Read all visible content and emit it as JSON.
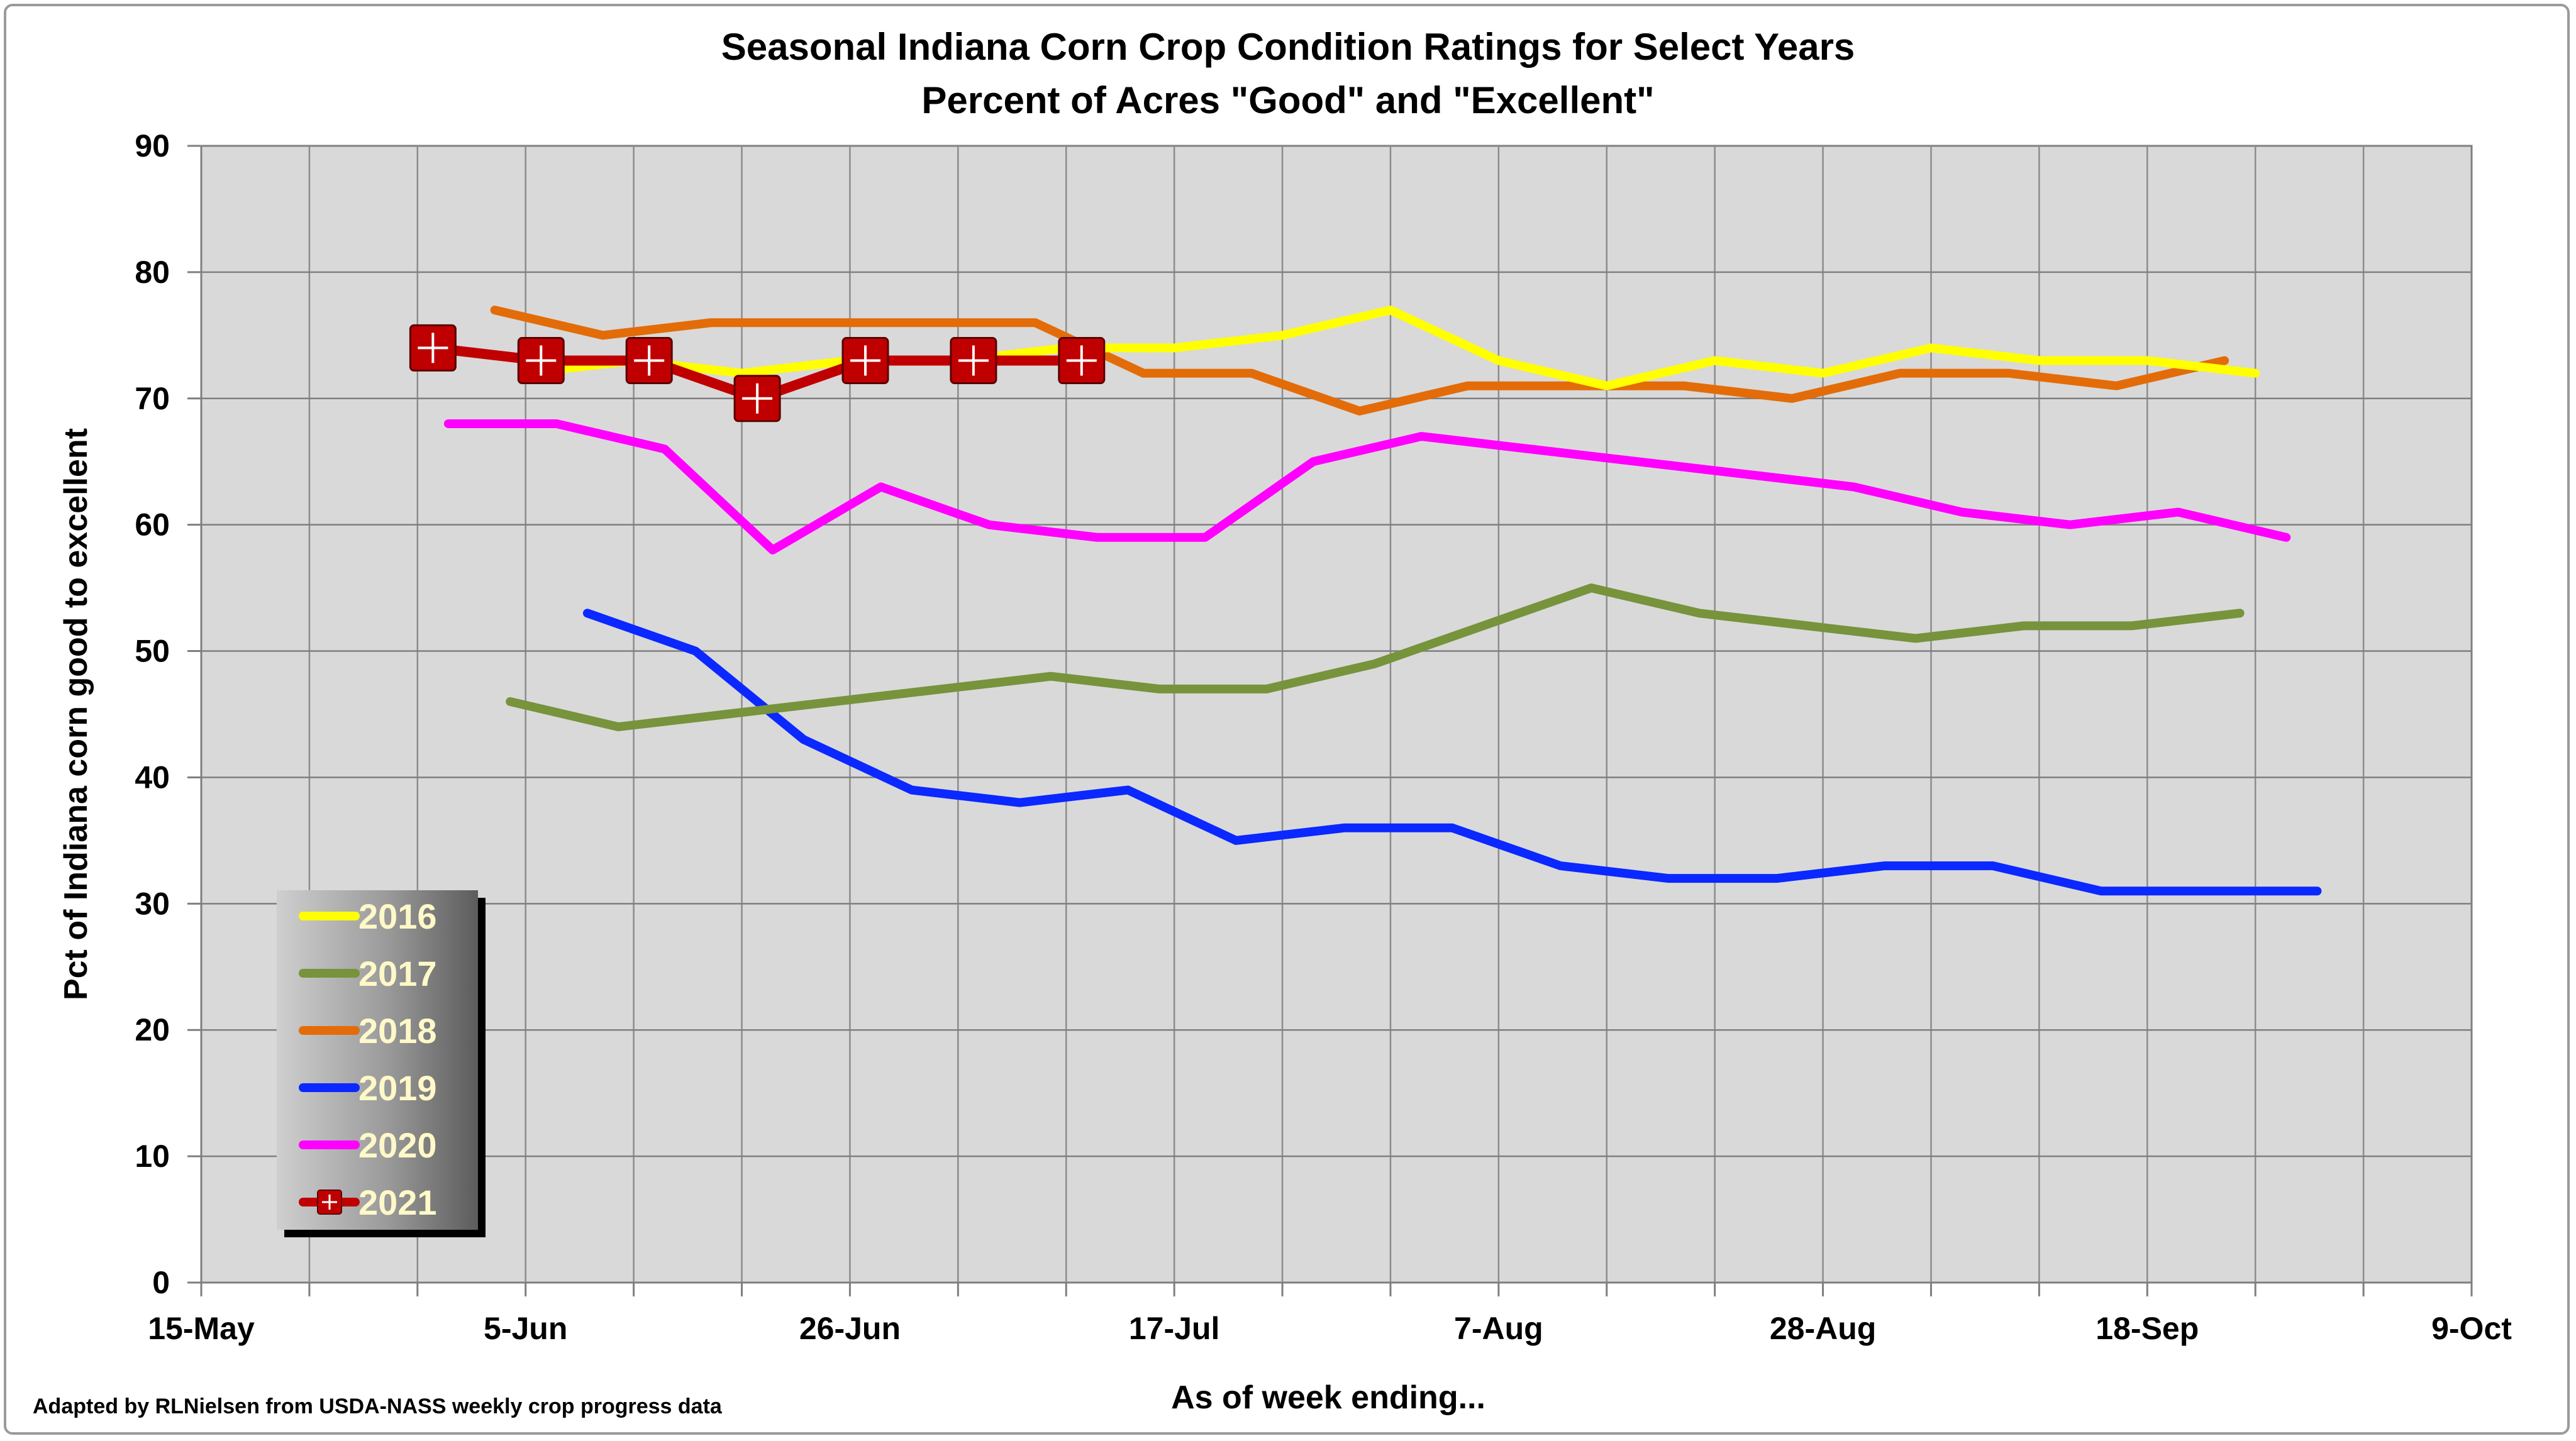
{
  "chart_data": {
    "type": "line",
    "title": "Seasonal Indiana Corn Crop Condition Ratings for Select Years",
    "subtitle": "Percent of Acres \"Good\" and \"Excellent\"",
    "xlabel": "As of week ending...",
    "ylabel": "Pct of Indiana corn good to excellent",
    "credit": "Adapted by RLNielsen from USDA-NASS weekly crop progress data",
    "x_ticks": [
      "15-May",
      "5-Jun",
      "26-Jun",
      "17-Jul",
      "7-Aug",
      "28-Aug",
      "18-Sep",
      "9-Oct"
    ],
    "x_range_days": [
      0,
      147
    ],
    "y_ticks": [
      "0",
      "10",
      "20",
      "30",
      "40",
      "50",
      "60",
      "70",
      "80",
      "90"
    ],
    "ylim": [
      0,
      90
    ],
    "grid": true,
    "legend_position": "bottom-left",
    "series": [
      {
        "name": "2016",
        "color": "#ffff00",
        "x": [
          "5-Jun",
          "12-Jun",
          "19-Jun",
          "26-Jun",
          "3-Jul",
          "10-Jul",
          "17-Jul",
          "24-Jul",
          "31-Jul",
          "7-Aug",
          "14-Aug",
          "21-Aug",
          "28-Aug",
          "4-Sep",
          "11-Sep",
          "18-Sep",
          "25-Sep"
        ],
        "y": [
          72,
          73,
          72,
          73,
          73,
          74,
          74,
          75,
          77,
          73,
          71,
          73,
          72,
          74,
          73,
          73,
          72
        ]
      },
      {
        "name": "2017",
        "color": "#77933c",
        "x": [
          "4-Jun",
          "11-Jun",
          "18-Jun",
          "25-Jun",
          "2-Jul",
          "9-Jul",
          "16-Jul",
          "23-Jul",
          "30-Jul",
          "6-Aug",
          "13-Aug",
          "20-Aug",
          "27-Aug",
          "3-Sep",
          "10-Sep",
          "17-Sep",
          "24-Sep"
        ],
        "y": [
          46,
          44,
          45,
          46,
          47,
          48,
          47,
          47,
          49,
          52,
          55,
          53,
          52,
          51,
          52,
          52,
          53
        ]
      },
      {
        "name": "2018",
        "color": "#e36c09",
        "x": [
          "3-Jun",
          "10-Jun",
          "17-Jun",
          "24-Jun",
          "1-Jul",
          "8-Jul",
          "15-Jul",
          "22-Jul",
          "29-Jul",
          "5-Aug",
          "12-Aug",
          "19-Aug",
          "26-Aug",
          "2-Sep",
          "9-Sep",
          "16-Sep",
          "23-Sep"
        ],
        "y": [
          77,
          75,
          76,
          76,
          76,
          76,
          72,
          72,
          69,
          71,
          71,
          71,
          70,
          72,
          72,
          71,
          73
        ]
      },
      {
        "name": "2019",
        "color": "#0a28ff",
        "x": [
          "9-Jun",
          "16-Jun",
          "23-Jun",
          "30-Jun",
          "7-Jul",
          "14-Jul",
          "21-Jul",
          "28-Jul",
          "4-Aug",
          "11-Aug",
          "18-Aug",
          "25-Aug",
          "1-Sep",
          "8-Sep",
          "15-Sep",
          "22-Sep",
          "29-Sep"
        ],
        "y": [
          53,
          50,
          43,
          39,
          38,
          39,
          35,
          36,
          36,
          33,
          32,
          32,
          33,
          33,
          31,
          31,
          31
        ]
      },
      {
        "name": "2020",
        "color": "#ff00ff",
        "x": [
          "31-May",
          "7-Jun",
          "14-Jun",
          "21-Jun",
          "28-Jun",
          "5-Jul",
          "12-Jul",
          "19-Jul",
          "26-Jul",
          "2-Aug",
          "9-Aug",
          "16-Aug",
          "23-Aug",
          "30-Aug",
          "6-Sep",
          "13-Sep",
          "20-Sep",
          "27-Sep"
        ],
        "y": [
          68,
          68,
          66,
          58,
          63,
          60,
          59,
          59,
          65,
          67,
          66,
          65,
          64,
          63,
          61,
          60,
          61,
          59
        ]
      },
      {
        "name": "2021",
        "color": "#c00000",
        "x": [
          "30-May",
          "6-Jun",
          "13-Jun",
          "20-Jun",
          "27-Jun",
          "4-Jul",
          "11-Jul"
        ],
        "y": [
          74,
          73,
          73,
          70,
          73,
          73,
          73
        ]
      }
    ]
  }
}
